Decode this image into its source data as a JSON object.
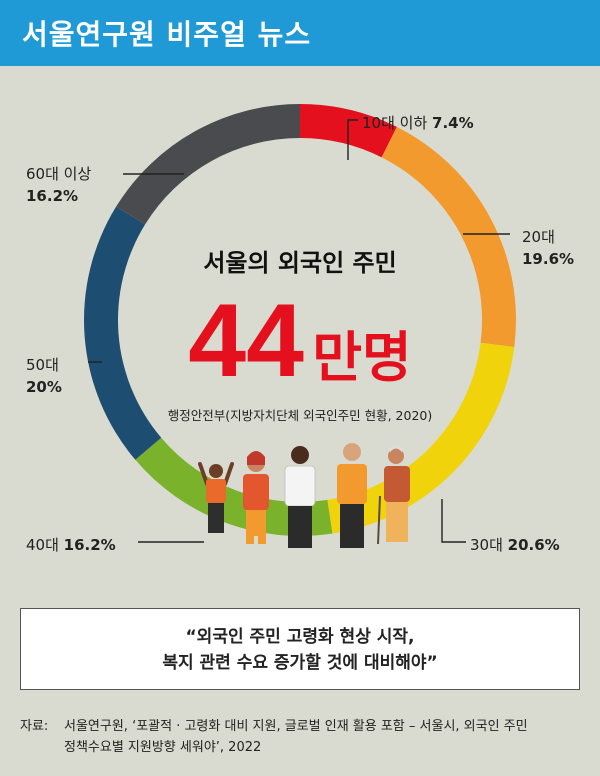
{
  "header": {
    "title": "서울연구원 비주얼 뉴스",
    "background_color": "#1f9ad6"
  },
  "chart_data": {
    "type": "donut",
    "title": "서울의 외국인 주민",
    "headline_number": "44",
    "headline_unit": "만명",
    "subtitle": "행정안전부(지방자치단체 외국인주민 현황, 2020)",
    "categories": [
      "10대 이하",
      "20대",
      "30대",
      "40대",
      "50대",
      "60대 이상"
    ],
    "values": [
      7.4,
      19.6,
      20.6,
      16.2,
      20,
      16.2
    ],
    "value_labels": [
      "7.4%",
      "19.6%",
      "20.6%",
      "16.2%",
      "20%",
      "16.2%"
    ],
    "colors": [
      "#e4101d",
      "#f39a2e",
      "#f1d30c",
      "#7bb22b",
      "#1d4e72",
      "#4a4b4e"
    ],
    "headline_color": "#e4101d",
    "unit": "%"
  },
  "callout": {
    "line1": "“외국인 주민 고령화 현상 시작,",
    "line2": "복지 관련 수요 증가할 것에 대비해야”"
  },
  "source": {
    "label": "자료:",
    "line1": "서울연구원, ‘포괄적 · 고령화 대비 지원, 글로벌 인재 활용 포함 – 서울시, 외국인 주민",
    "line2": "정책수요별 지원방향 세워야’, 2022"
  }
}
